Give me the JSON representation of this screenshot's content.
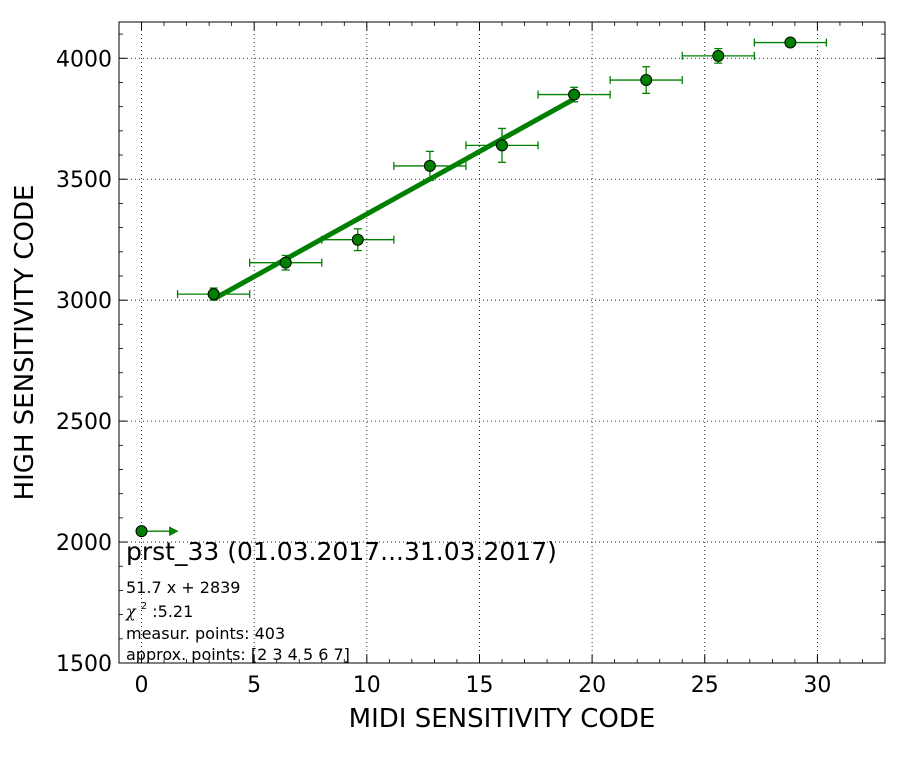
{
  "chart_data": {
    "type": "scatter",
    "xlabel": "MIDI SENSITIVITY CODE",
    "ylabel": "HIGH SENSITIVITY CODE",
    "xlim": [
      -1,
      33
    ],
    "ylim": [
      1500,
      4150
    ],
    "xticks": [
      0,
      5,
      10,
      15,
      20,
      25,
      30
    ],
    "yticks": [
      1500,
      2000,
      2500,
      3000,
      3500,
      4000
    ],
    "grid": true,
    "colors": {
      "series": "#008000",
      "marker_edge": "#000000"
    },
    "series": [
      {
        "type": "errorbar",
        "points": [
          {
            "x": 3.2,
            "y": 3025,
            "xerr": 1.6,
            "yerr": 25
          },
          {
            "x": 6.4,
            "y": 3155,
            "xerr": 1.6,
            "yerr": 30
          },
          {
            "x": 9.6,
            "y": 3250,
            "xerr": 1.6,
            "yerr": 45
          },
          {
            "x": 12.8,
            "y": 3555,
            "xerr": 1.6,
            "yerr": 60
          },
          {
            "x": 16.0,
            "y": 3640,
            "xerr": 1.6,
            "yerr": 70
          },
          {
            "x": 19.2,
            "y": 3850,
            "xerr": 1.6,
            "yerr": 30
          },
          {
            "x": 22.4,
            "y": 3910,
            "xerr": 1.6,
            "yerr": 55
          },
          {
            "x": 25.6,
            "y": 4010,
            "xerr": 1.6,
            "yerr": 30
          },
          {
            "x": 28.8,
            "y": 4065,
            "xerr": 1.6,
            "yerr": 12
          }
        ]
      },
      {
        "type": "lower_limit",
        "points": [
          {
            "x": 0,
            "y": 2045,
            "arrow_to_x": 1.6
          }
        ]
      },
      {
        "type": "fit_line",
        "x": [
          3.2,
          19.2
        ],
        "y": [
          3004.4,
          3831.6
        ]
      }
    ],
    "annotations": {
      "title": "prst_33 (01.03.2017...31.03.2017)",
      "fit": "51.7 x + 2839",
      "chi2_symbol": "χ",
      "chi2_sup": "2",
      "chi2_value": " :5.21",
      "measur_points": "measur. points: 403",
      "approx_points": "approx. points: [2 3 4 5 6 7]"
    }
  }
}
